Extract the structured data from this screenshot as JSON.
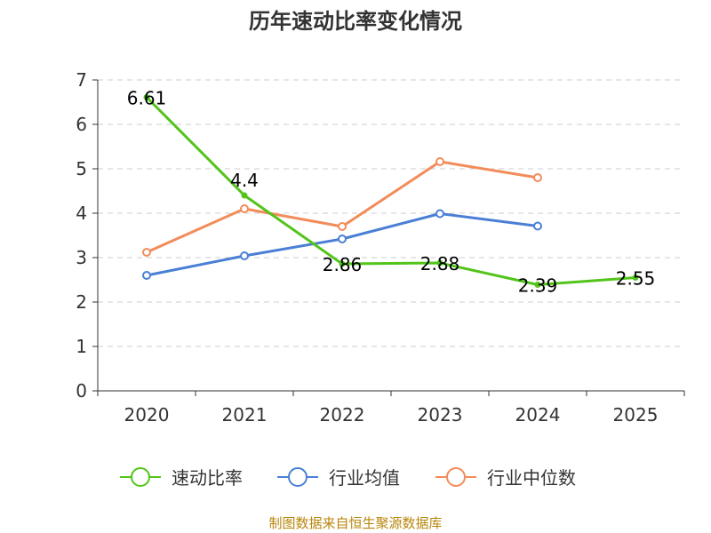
{
  "chart_data": {
    "type": "line",
    "title": "历年速动比率变化情况",
    "categories": [
      "2020",
      "2021",
      "2022",
      "2023",
      "2024",
      "2025"
    ],
    "yticks": [
      "0",
      "1",
      "2",
      "3",
      "4",
      "5",
      "6",
      "7"
    ],
    "ylim": [
      0,
      7
    ],
    "grid": true,
    "legend_position": "bottom-center",
    "series": [
      {
        "name": "速动比率",
        "color": "#52c41a",
        "values": [
          6.61,
          4.4,
          2.86,
          2.88,
          2.39,
          2.55
        ],
        "labels": [
          "6.61",
          "4.4",
          "2.86",
          "2.88",
          "2.39",
          "2.55"
        ]
      },
      {
        "name": "行业均值",
        "color": "#4a7fd6",
        "values": [
          2.6,
          3.04,
          3.42,
          3.99,
          3.71,
          null
        ]
      },
      {
        "name": "行业中位数",
        "color": "#f28c5a",
        "values": [
          3.12,
          4.1,
          3.7,
          5.16,
          4.8,
          null
        ]
      }
    ],
    "source": "制图数据来自恒生聚源数据库"
  }
}
